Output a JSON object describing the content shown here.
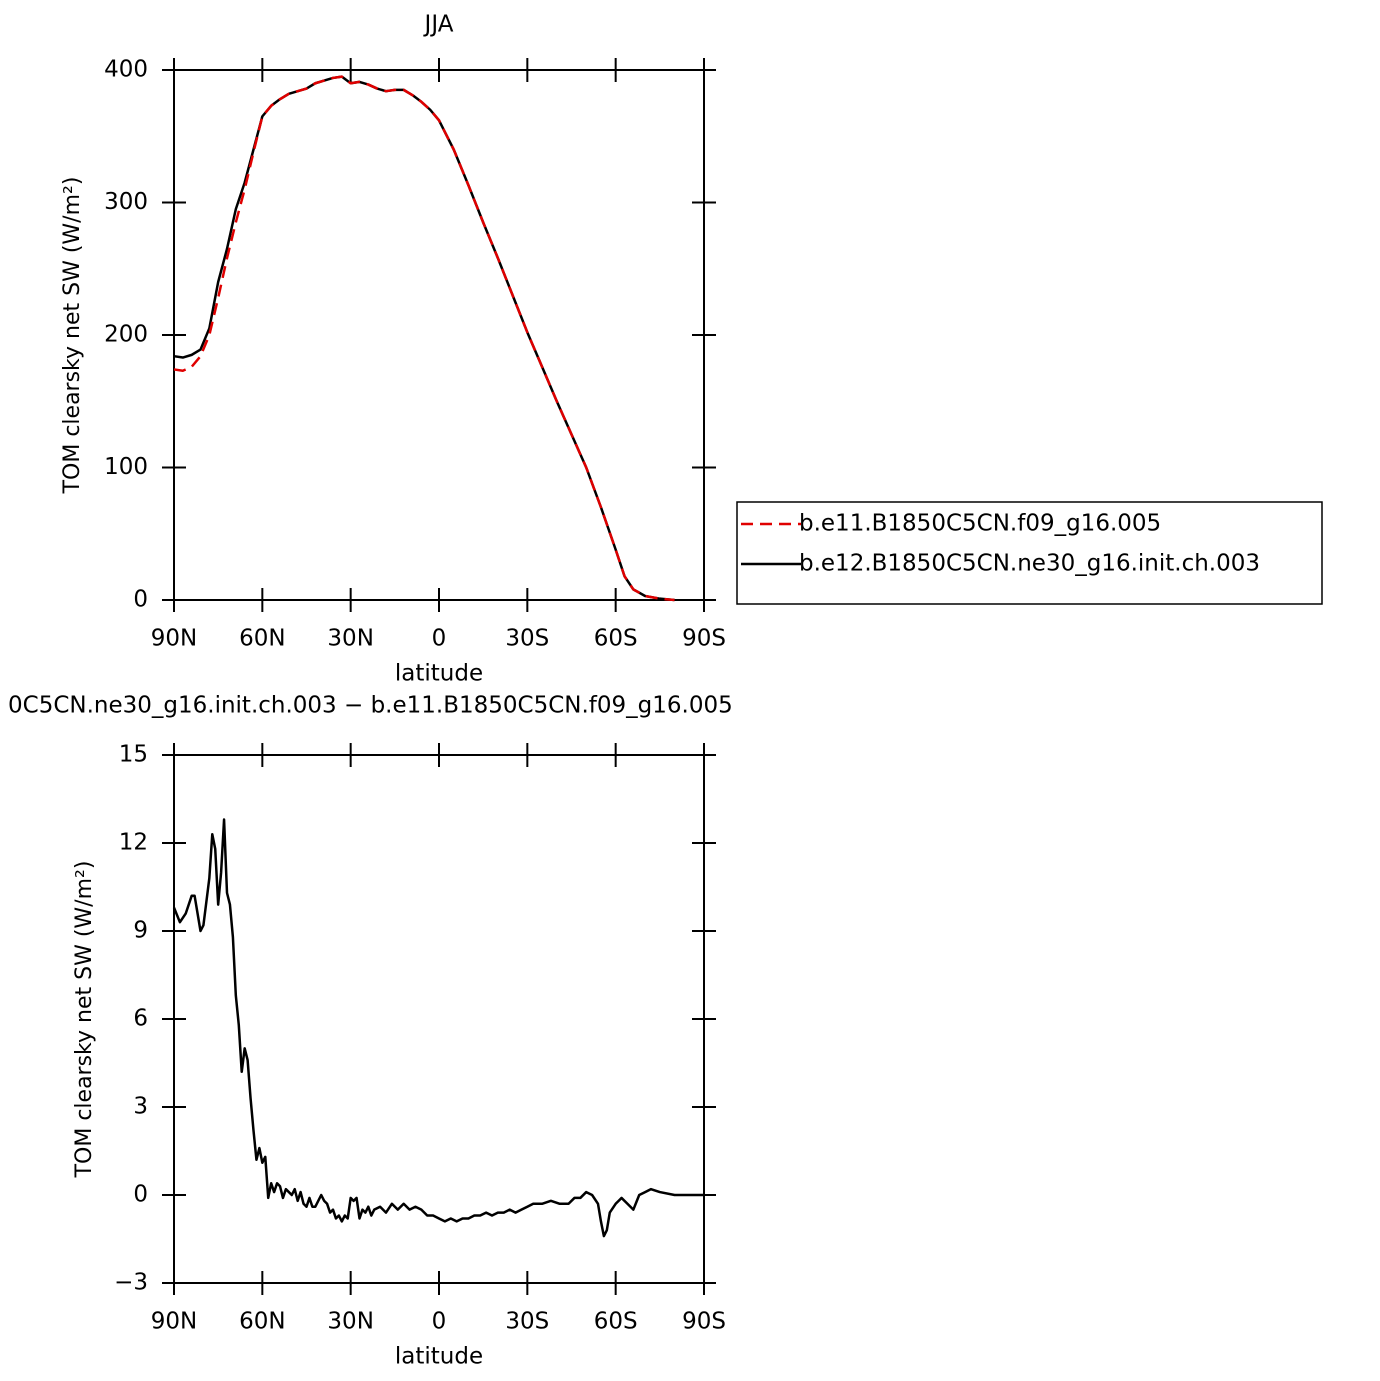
{
  "chart_data": [
    {
      "type": "line",
      "title": "JJA",
      "xlabel": "latitude",
      "ylabel": "TOM clearsky net SW (W/m²)",
      "x": [
        90,
        87,
        84,
        81,
        78,
        75,
        72,
        69,
        66,
        63,
        60,
        57,
        54,
        51,
        48,
        45,
        42,
        39,
        36,
        33,
        30,
        27,
        24,
        21,
        18,
        15,
        12,
        9,
        6,
        3,
        0,
        -5,
        -10,
        -15,
        -20,
        -25,
        -30,
        -35,
        -40,
        -45,
        -50,
        -55,
        -60,
        -63,
        -66,
        -70,
        -75,
        -80
      ],
      "series": [
        {
          "name": "b.e11.B1850C5CN.f09_g16.005",
          "color": "#e00000",
          "dashed": true,
          "values": [
            174,
            173,
            176,
            184,
            200,
            228,
            258,
            285,
            310,
            338,
            365,
            373,
            378,
            382,
            384,
            386,
            390,
            392,
            394,
            395,
            390,
            391,
            389,
            386,
            384,
            385,
            385,
            381,
            376,
            370,
            362,
            340,
            313,
            285,
            258,
            230,
            202,
            176,
            150,
            125,
            100,
            70,
            38,
            18,
            8,
            3,
            1,
            0
          ]
        },
        {
          "name": "b.e12.B1850C5CN.ne30_g16.init.ch.003",
          "color": "#000000",
          "dashed": false,
          "values": [
            184,
            183,
            185,
            189,
            205,
            240,
            265,
            295,
            315,
            340,
            365,
            373,
            378,
            382,
            384,
            386,
            390,
            392,
            394,
            395,
            390,
            391,
            389,
            386,
            384,
            385,
            385,
            381,
            376,
            370,
            362,
            340,
            313,
            285,
            258,
            230,
            202,
            176,
            150,
            125,
            100,
            70,
            38,
            18,
            8,
            3,
            1,
            0
          ]
        }
      ],
      "xlim": [
        90,
        -90
      ],
      "xticks": [
        {
          "value": 90,
          "label": "90N"
        },
        {
          "value": 60,
          "label": "60N"
        },
        {
          "value": 30,
          "label": "30N"
        },
        0,
        {
          "value": -30,
          "label": "30S"
        },
        {
          "value": -60,
          "label": "60S"
        },
        {
          "value": -90,
          "label": "90S"
        }
      ],
      "ylim": [
        0,
        400
      ],
      "yticks": [
        0,
        100,
        200,
        300,
        400
      ],
      "legend": "right"
    },
    {
      "type": "line",
      "title": "0C5CN.ne30_g16.init.ch.003 − b.e11.B1850C5CN.f09_g16.005",
      "xlabel": "latitude",
      "ylabel": "TOM clearsky net SW (W/m²)",
      "x": [
        90,
        88,
        86,
        84,
        83,
        81,
        80,
        78,
        77,
        76,
        75,
        74,
        73,
        72,
        71,
        70,
        69,
        68,
        67,
        66,
        65,
        64,
        63,
        62,
        61,
        60,
        59,
        58,
        57,
        56,
        55,
        54,
        53,
        52,
        51,
        50,
        49,
        48,
        47,
        46,
        45,
        44,
        43,
        42,
        41,
        40,
        39,
        38,
        37,
        36,
        35,
        34,
        33,
        32,
        31,
        30,
        29,
        28,
        27,
        26,
        25,
        24,
        23,
        22,
        20,
        18,
        16,
        14,
        12,
        10,
        8,
        6,
        4,
        2,
        0,
        -2,
        -4,
        -6,
        -8,
        -10,
        -12,
        -14,
        -16,
        -18,
        -20,
        -22,
        -24,
        -26,
        -28,
        -30,
        -32,
        -35,
        -38,
        -41,
        -44,
        -46,
        -48,
        -50,
        -52,
        -54,
        -55,
        -56,
        -57,
        -58,
        -60,
        -61,
        -62,
        -64,
        -66,
        -68,
        -70,
        -72,
        -75,
        -80,
        -85,
        -90
      ],
      "series": [
        {
          "color": "#000000",
          "dashed": false,
          "values": [
            9.8,
            9.3,
            9.6,
            10.2,
            10.2,
            9.0,
            9.2,
            10.8,
            12.3,
            11.8,
            9.9,
            11.0,
            12.8,
            10.3,
            9.9,
            8.8,
            6.8,
            5.8,
            4.2,
            5.0,
            4.6,
            3.3,
            2.2,
            1.2,
            1.6,
            1.1,
            1.3,
            -0.1,
            0.4,
            0.1,
            0.4,
            0.3,
            -0.1,
            0.2,
            0.1,
            0,
            0.2,
            -0.2,
            0.1,
            -0.3,
            -0.4,
            -0.1,
            -0.4,
            -0.4,
            -0.2,
            0,
            -0.2,
            -0.3,
            -0.6,
            -0.5,
            -0.8,
            -0.7,
            -0.9,
            -0.7,
            -0.8,
            -0.1,
            -0.2,
            -0.1,
            -0.8,
            -0.5,
            -0.6,
            -0.4,
            -0.7,
            -0.5,
            -0.4,
            -0.6,
            -0.3,
            -0.5,
            -0.3,
            -0.5,
            -0.4,
            -0.5,
            -0.7,
            -0.7,
            -0.8,
            -0.9,
            -0.8,
            -0.9,
            -0.8,
            -0.8,
            -0.7,
            -0.7,
            -0.6,
            -0.7,
            -0.6,
            -0.6,
            -0.5,
            -0.6,
            -0.5,
            -0.4,
            -0.3,
            -0.3,
            -0.2,
            -0.3,
            -0.3,
            -0.1,
            -0.1,
            0.1,
            0,
            -0.3,
            -0.9,
            -1.4,
            -1.2,
            -0.6,
            -0.3,
            -0.2,
            -0.1,
            -0.3,
            -0.5,
            0,
            0.1,
            0.2,
            0.1,
            0,
            0,
            0
          ]
        }
      ],
      "xlim": [
        90,
        -90
      ],
      "xticks": [
        {
          "value": 90,
          "label": "90N"
        },
        {
          "value": 60,
          "label": "60N"
        },
        {
          "value": 30,
          "label": "30N"
        },
        0,
        {
          "value": -30,
          "label": "30S"
        },
        {
          "value": -60,
          "label": "60S"
        },
        {
          "value": -90,
          "label": "90S"
        }
      ],
      "ylim": [
        -3,
        15
      ],
      "yticks": [
        {
          "value": -3,
          "label": "−3"
        },
        0,
        3,
        6,
        9,
        12,
        15
      ]
    }
  ]
}
